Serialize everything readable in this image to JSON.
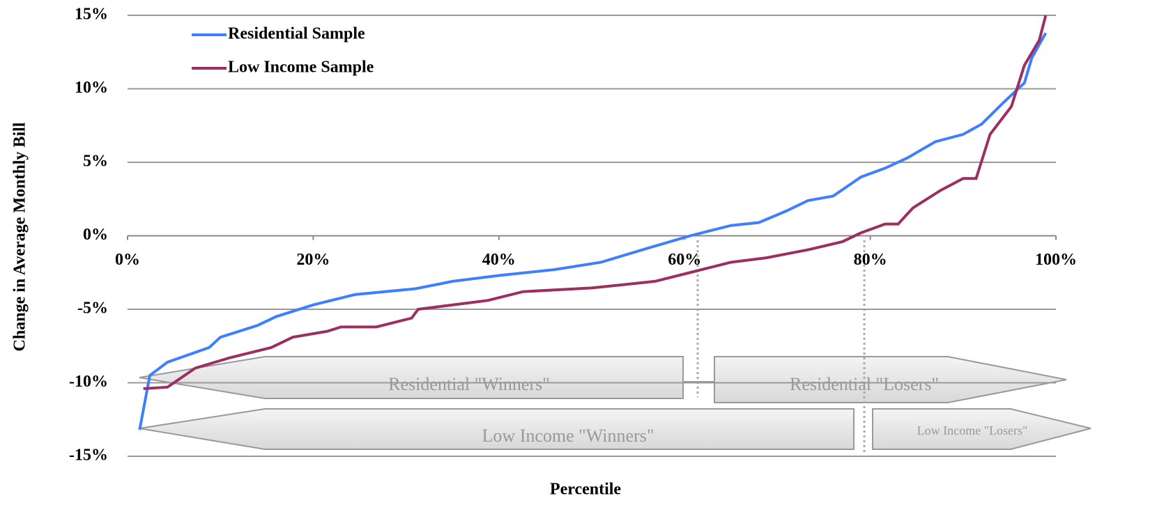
{
  "chart_data": {
    "type": "line",
    "xlabel": "Percentile",
    "ylabel": "Change in Average Monthly Bill",
    "xlim": [
      0,
      100
    ],
    "xticks": [
      {
        "value": 0,
        "label": "0%"
      },
      {
        "value": 20,
        "label": "20%"
      },
      {
        "value": 40,
        "label": "40%"
      },
      {
        "value": 60,
        "label": "60%"
      },
      {
        "value": 80,
        "label": "80%"
      },
      {
        "value": 100,
        "label": "100%"
      }
    ],
    "ylim": [
      -15,
      15
    ],
    "yticks": [
      {
        "value": 15,
        "label": "15%"
      },
      {
        "value": 10,
        "label": "10%"
      },
      {
        "value": 5,
        "label": "5%"
      },
      {
        "value": 0,
        "label": "0%"
      },
      {
        "value": -5,
        "label": "-5%"
      },
      {
        "value": -10,
        "label": "-10%"
      },
      {
        "value": -15,
        "label": "-15%"
      }
    ],
    "series": [
      {
        "name": "Residential Sample",
        "color": "#3f7fff",
        "x": [
          1.3,
          2.4,
          4.3,
          8.8,
          10,
          14,
          16,
          20,
          24.5,
          31,
          35,
          40,
          46,
          51,
          56,
          60.6,
          65,
          68,
          71,
          73.3,
          76,
          79,
          81.6,
          84,
          87,
          90,
          92,
          94.4,
          96.6,
          97.4,
          98.9
        ],
        "values": [
          -13.2,
          -9.5,
          -8.6,
          -7.6,
          -6.9,
          -6.1,
          -5.5,
          -4.7,
          -4.0,
          -3.6,
          -3.1,
          -2.7,
          -2.3,
          -1.8,
          -0.85,
          0,
          0.7,
          0.9,
          1.7,
          2.4,
          2.7,
          4.0,
          4.6,
          5.3,
          6.4,
          6.9,
          7.6,
          9.1,
          10.4,
          12.1,
          13.8
        ]
      },
      {
        "name": "Low Income Sample",
        "color": "#9b2f5f",
        "x": [
          1.7,
          4.3,
          7.3,
          11,
          15.5,
          17.8,
          21.5,
          23,
          26.8,
          30.6,
          31.3,
          38.8,
          42.6,
          50,
          56.8,
          60.6,
          65,
          68.8,
          73.3,
          77,
          79,
          81.6,
          83,
          84.6,
          87.6,
          90,
          91.4,
          92.9,
          95.2,
          96.6,
          98.2,
          98.9
        ],
        "values": [
          -10.4,
          -10.3,
          -9.0,
          -8.3,
          -7.6,
          -6.9,
          -6.5,
          -6.2,
          -6.2,
          -5.6,
          -5.0,
          -4.4,
          -3.8,
          -3.55,
          -3.1,
          -2.5,
          -1.8,
          -1.5,
          -0.95,
          -0.4,
          0.2,
          0.8,
          0.8,
          1.9,
          3.1,
          3.9,
          3.9,
          6.9,
          8.8,
          11.6,
          13.3,
          15
        ]
      }
    ],
    "annotations": [
      "Residential \"Winners\"",
      "Residential \"Losers\"",
      "Low Income \"Winners\"",
      "Low Income \"Losers\""
    ],
    "grid": true
  }
}
